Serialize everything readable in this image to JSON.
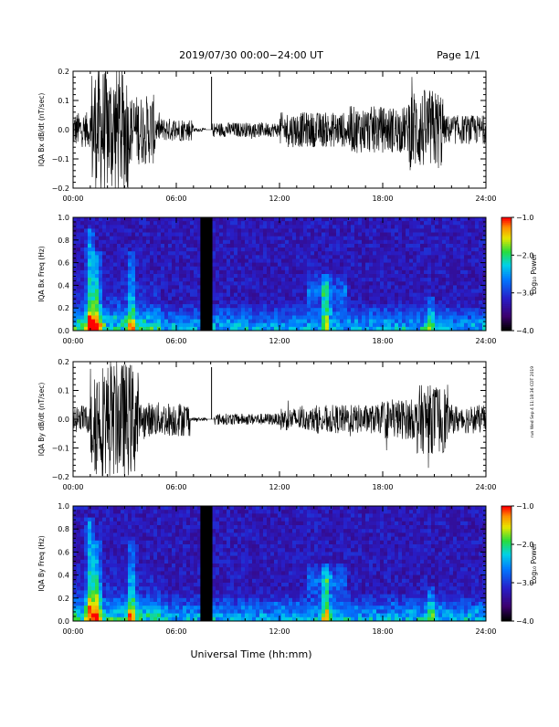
{
  "header": {
    "date_range": "2019/07/30  00:00−24:00 UT",
    "page": "Page 1/1"
  },
  "footer_xlabel": "Universal Time (hh:mm)",
  "side_note": "run Wed Sep 4 11:18:36 CDT 2019",
  "chart_data": [
    {
      "type": "line",
      "ylabel": "IQA Bx dB/dt (nT/sec)",
      "ylim": [
        -0.2,
        0.2
      ],
      "yticks": [
        "0.2",
        "0.1",
        "0.0",
        "−0.1",
        "−0.2"
      ],
      "xticks": [
        "00:00",
        "06:00",
        "12:00",
        "18:00",
        "24:00"
      ],
      "xlim_hours": [
        0,
        24
      ],
      "color": "#000000",
      "series": [
        {
          "segments": [
            {
              "from": 0.0,
              "to": 1.0,
              "amp": 0.06
            },
            {
              "from": 1.0,
              "to": 3.2,
              "amp": 0.22
            },
            {
              "from": 3.2,
              "to": 4.8,
              "amp": 0.12
            },
            {
              "from": 4.8,
              "to": 7.0,
              "amp": 0.04
            },
            {
              "from": 7.0,
              "to": 7.7,
              "amp": 0.006
            },
            {
              "from": 7.7,
              "to": 8.1,
              "amp": 0.0
            },
            {
              "from": 8.1,
              "to": 12.0,
              "amp": 0.025
            },
            {
              "from": 12.0,
              "to": 16.0,
              "amp": 0.06
            },
            {
              "from": 16.0,
              "to": 19.5,
              "amp": 0.08
            },
            {
              "from": 19.5,
              "to": 21.5,
              "amp": 0.14
            },
            {
              "from": 21.5,
              "to": 24.0,
              "amp": 0.05
            }
          ]
        }
      ]
    },
    {
      "type": "heatmap",
      "ylabel": "IQA Bx Freq (Hz)",
      "ylim": [
        0.0,
        1.0
      ],
      "yticks": [
        "1.0",
        "0.8",
        "0.6",
        "0.4",
        "0.2",
        "0.0"
      ],
      "xticks": [
        "00:00",
        "06:00",
        "12:00",
        "18:00",
        "24:00"
      ],
      "xlim_hours": [
        0,
        24
      ],
      "gap_hours": [
        7.4,
        8.1
      ],
      "features": [
        {
          "hour": 1.0,
          "fmax": 0.9,
          "level": 0.9
        },
        {
          "hour": 1.4,
          "fmax": 0.7,
          "level": 0.8
        },
        {
          "hour": 3.4,
          "fmax": 0.7,
          "level": 0.7
        },
        {
          "hour": 14.7,
          "fmax": 0.5,
          "level": 0.85
        },
        {
          "hour": 20.8,
          "fmax": 0.3,
          "level": 0.6
        }
      ]
    },
    {
      "type": "line",
      "ylabel": "IQA By dB/dt (nT/sec)",
      "ylim": [
        -0.2,
        0.2
      ],
      "yticks": [
        "0.2",
        "0.1",
        "0.0",
        "−0.1",
        "−0.2"
      ],
      "xticks": [
        "00:00",
        "06:00",
        "12:00",
        "18:00",
        "24:00"
      ],
      "xlim_hours": [
        0,
        24
      ],
      "color": "#000000",
      "series": [
        {
          "segments": [
            {
              "from": 0.0,
              "to": 1.0,
              "amp": 0.05
            },
            {
              "from": 1.0,
              "to": 3.8,
              "amp": 0.2
            },
            {
              "from": 3.8,
              "to": 6.8,
              "amp": 0.06
            },
            {
              "from": 6.8,
              "to": 7.8,
              "amp": 0.006
            },
            {
              "from": 7.8,
              "to": 8.2,
              "amp": 0.0
            },
            {
              "from": 8.2,
              "to": 12.0,
              "amp": 0.02
            },
            {
              "from": 12.0,
              "to": 14.0,
              "amp": 0.04
            },
            {
              "from": 14.0,
              "to": 18.0,
              "amp": 0.05
            },
            {
              "from": 18.0,
              "to": 20.0,
              "amp": 0.07
            },
            {
              "from": 20.0,
              "to": 21.8,
              "amp": 0.12
            },
            {
              "from": 21.8,
              "to": 24.0,
              "amp": 0.05
            }
          ]
        }
      ]
    },
    {
      "type": "heatmap",
      "ylabel": "IQA By Freq (Hz)",
      "ylim": [
        0.0,
        1.0
      ],
      "yticks": [
        "1.0",
        "0.8",
        "0.6",
        "0.4",
        "0.2",
        "0.0"
      ],
      "xticks": [
        "00:00",
        "06:00",
        "12:00",
        "18:00",
        "24:00"
      ],
      "xlim_hours": [
        0,
        24
      ],
      "gap_hours": [
        7.4,
        8.1
      ],
      "features": [
        {
          "hour": 1.0,
          "fmax": 0.9,
          "level": 0.9
        },
        {
          "hour": 1.4,
          "fmax": 0.7,
          "level": 0.8
        },
        {
          "hour": 3.4,
          "fmax": 0.7,
          "level": 0.7
        },
        {
          "hour": 14.7,
          "fmax": 0.5,
          "level": 0.85
        },
        {
          "hour": 20.8,
          "fmax": 0.3,
          "level": 0.6
        }
      ]
    }
  ],
  "colorbars": [
    {
      "label": "Log₁₀ Power",
      "ticks": [
        "−1.0",
        "−2.0",
        "−3.0",
        "−4.0"
      ]
    },
    {
      "label": "Log₁₀ Power",
      "ticks": [
        "−1.0",
        "−2.0",
        "−3.0",
        "−4.0"
      ]
    }
  ]
}
